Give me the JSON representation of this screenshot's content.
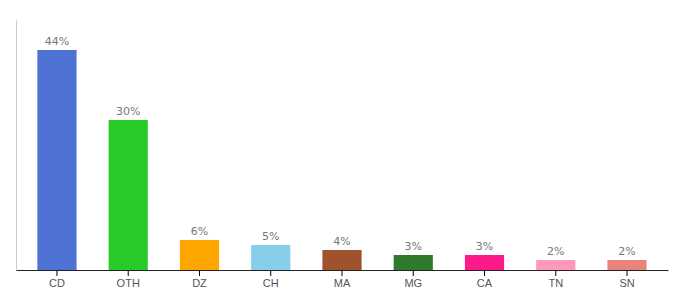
{
  "chart_data": {
    "type": "bar",
    "categories": [
      "CD",
      "OTH",
      "DZ",
      "CH",
      "MA",
      "MG",
      "CA",
      "TN",
      "SN"
    ],
    "values": [
      44,
      30,
      6,
      5,
      4,
      3,
      3,
      2,
      2
    ],
    "value_labels": [
      "44%",
      "30%",
      "6%",
      "5%",
      "4%",
      "3%",
      "3%",
      "2%",
      "2%"
    ],
    "colors": [
      "#4d72d4",
      "#28cc28",
      "#ffa500",
      "#87ceeb",
      "#a0522d",
      "#2d7a2d",
      "#ff1a8c",
      "#ff99bb",
      "#e8857a"
    ],
    "ylim": [
      0,
      50
    ],
    "grid": false,
    "data_labels": true,
    "tick_labels": "x"
  }
}
